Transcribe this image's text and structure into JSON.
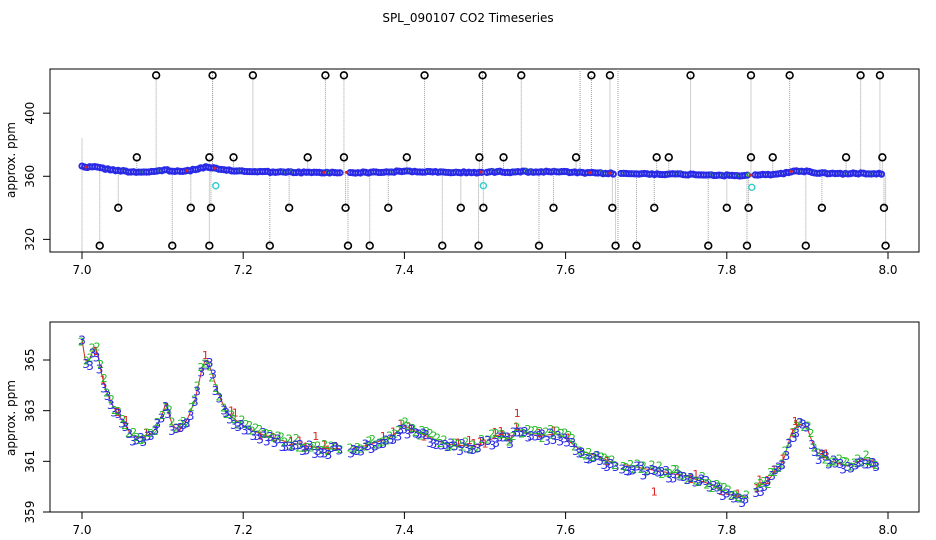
{
  "title": "SPL_090107  CO2 Timeseries",
  "colors": {
    "frame": "#000000",
    "grey_line": "#a0a0a0",
    "blue": "#2a2ae6",
    "green": "#22bb22",
    "red": "#dd2222",
    "cyan": "#33cccc",
    "outlier": "#000000"
  },
  "chart_data": [
    {
      "type": "scatter",
      "name": "top-panel",
      "ylabel": "approx. ppm",
      "xlim": [
        7.0,
        8.0
      ],
      "ylim": [
        312,
        428
      ],
      "xticks": [
        7.0,
        7.2,
        7.4,
        7.6,
        7.8,
        8.0
      ],
      "xtick_labels": [
        "7.0",
        "7.2",
        "7.4",
        "7.6",
        "7.8",
        "8.0"
      ],
      "yticks": [
        320,
        360,
        400
      ],
      "ytick_labels": [
        "320",
        "360",
        "400"
      ],
      "outliers_high": [
        [
          7.092,
          424
        ],
        [
          7.162,
          424
        ],
        [
          7.212,
          424
        ],
        [
          7.302,
          424
        ],
        [
          7.325,
          424
        ],
        [
          7.425,
          424
        ],
        [
          7.497,
          424
        ],
        [
          7.545,
          424
        ],
        [
          7.632,
          424
        ],
        [
          7.655,
          424
        ],
        [
          7.755,
          424
        ],
        [
          7.83,
          424
        ],
        [
          7.878,
          424
        ],
        [
          7.966,
          424
        ],
        [
          7.99,
          424
        ]
      ],
      "outliers_mid": [
        [
          7.068,
          372
        ],
        [
          7.158,
          372
        ],
        [
          7.188,
          372
        ],
        [
          7.28,
          372
        ],
        [
          7.325,
          372
        ],
        [
          7.403,
          372
        ],
        [
          7.493,
          372
        ],
        [
          7.523,
          372
        ],
        [
          7.613,
          372
        ],
        [
          7.713,
          372
        ],
        [
          7.728,
          372
        ],
        [
          7.83,
          372
        ],
        [
          7.857,
          372
        ],
        [
          7.948,
          372
        ],
        [
          7.993,
          372
        ]
      ],
      "outliers_low1": [
        [
          7.045,
          340
        ],
        [
          7.135,
          340
        ],
        [
          7.16,
          340
        ],
        [
          7.257,
          340
        ],
        [
          7.327,
          340
        ],
        [
          7.38,
          340
        ],
        [
          7.47,
          340
        ],
        [
          7.498,
          340
        ],
        [
          7.585,
          340
        ],
        [
          7.658,
          340
        ],
        [
          7.71,
          340
        ],
        [
          7.8,
          340
        ],
        [
          7.827,
          340
        ],
        [
          7.918,
          340
        ],
        [
          7.995,
          340
        ]
      ],
      "outliers_low2": [
        [
          7.022,
          316
        ],
        [
          7.112,
          316
        ],
        [
          7.158,
          316
        ],
        [
          7.233,
          316
        ],
        [
          7.33,
          316
        ],
        [
          7.357,
          316
        ],
        [
          7.447,
          316
        ],
        [
          7.492,
          316
        ],
        [
          7.567,
          316
        ],
        [
          7.662,
          316
        ],
        [
          7.688,
          316
        ],
        [
          7.777,
          316
        ],
        [
          7.825,
          316
        ],
        [
          7.898,
          316
        ],
        [
          7.997,
          316
        ]
      ],
      "cyan_points": [
        [
          7.166,
          354
        ],
        [
          7.498,
          354
        ],
        [
          7.831,
          353
        ]
      ]
    },
    {
      "type": "line",
      "name": "bottom-panel",
      "ylabel": "approx. ppm",
      "xlim": [
        7.0,
        8.0
      ],
      "ylim": [
        359,
        366.5
      ],
      "xticks": [
        7.0,
        7.2,
        7.4,
        7.6,
        7.8,
        8.0
      ],
      "xtick_labels": [
        "7.0",
        "7.2",
        "7.4",
        "7.6",
        "7.8",
        "8.0"
      ],
      "yticks": [
        359,
        361,
        363,
        365
      ],
      "ytick_labels": [
        "359",
        "361",
        "363",
        "365"
      ],
      "series_labels": [
        "1",
        "2",
        "3"
      ],
      "gaps": [
        [
          7.323,
          7.332
        ],
        [
          7.497,
          7.502
        ],
        [
          7.662,
          7.668
        ],
        [
          7.827,
          7.833
        ]
      ],
      "x": [
        7.0,
        7.005,
        7.01,
        7.015,
        7.02,
        7.025,
        7.03,
        7.035,
        7.04,
        7.05,
        7.06,
        7.07,
        7.08,
        7.09,
        7.1,
        7.105,
        7.11,
        7.12,
        7.13,
        7.14,
        7.15,
        7.155,
        7.16,
        7.17,
        7.18,
        7.2,
        7.22,
        7.25,
        7.28,
        7.3,
        7.323,
        7.332,
        7.35,
        7.38,
        7.4,
        7.42,
        7.45,
        7.48,
        7.497,
        7.502,
        7.51,
        7.52,
        7.53,
        7.54,
        7.55,
        7.57,
        7.59,
        7.6,
        7.62,
        7.64,
        7.662,
        7.668,
        7.7,
        7.72,
        7.75,
        7.78,
        7.8,
        7.82,
        7.827,
        7.833,
        7.85,
        7.87,
        7.88,
        7.89,
        7.9,
        7.91,
        7.93,
        7.95,
        7.97,
        7.99
      ],
      "values": [
        365.8,
        364.8,
        365.0,
        365.6,
        365.2,
        364.3,
        363.8,
        363.4,
        363.1,
        362.6,
        362.1,
        361.9,
        362.0,
        362.2,
        362.9,
        363.4,
        362.5,
        362.2,
        362.6,
        363.4,
        364.8,
        365.1,
        364.6,
        363.6,
        362.9,
        362.4,
        362.1,
        361.8,
        361.6,
        361.5,
        361.5,
        361.5,
        361.6,
        361.9,
        362.4,
        362.1,
        361.7,
        361.6,
        361.7,
        361.8,
        361.9,
        362.1,
        361.8,
        362.3,
        362.1,
        362.0,
        362.1,
        361.9,
        361.4,
        361.2,
        360.9,
        360.9,
        360.7,
        360.6,
        360.4,
        360.1,
        359.7,
        359.6,
        359.6,
        359.9,
        360.2,
        361.0,
        362.1,
        362.5,
        362.3,
        361.4,
        361.0,
        360.8,
        361.1,
        360.9
      ]
    }
  ]
}
